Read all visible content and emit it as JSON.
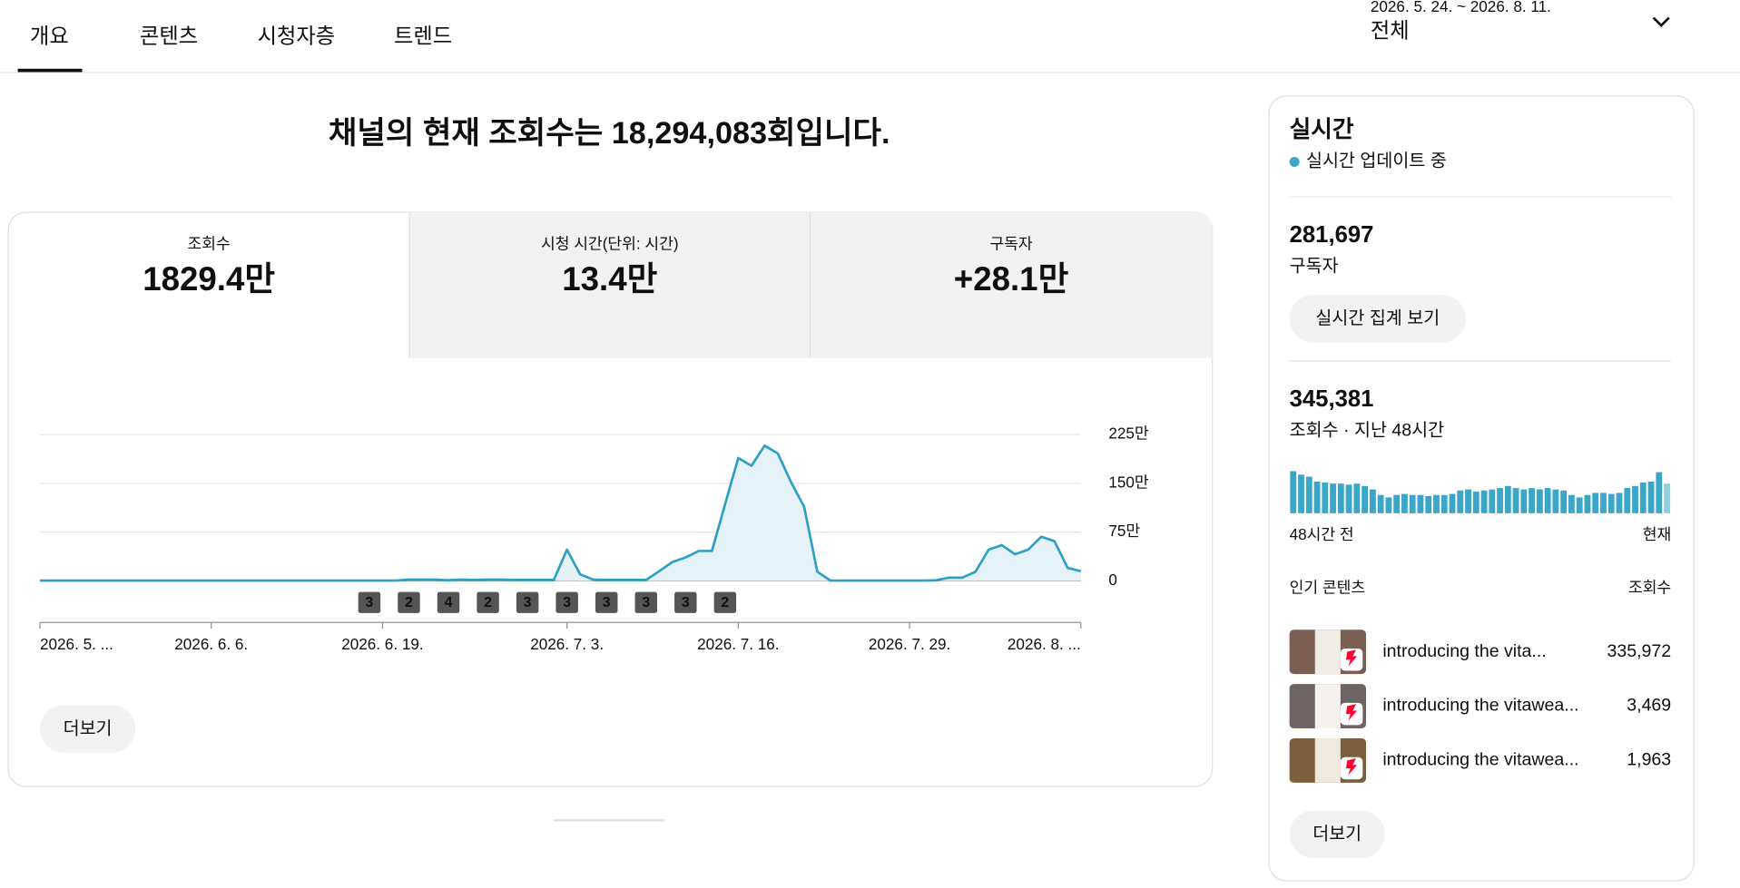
{
  "tabs": [
    "개요",
    "콘텐츠",
    "시청자층",
    "트렌드"
  ],
  "date_range": {
    "dates": "2026. 5. 24. ~ 2026. 8. 11.",
    "period": "전체"
  },
  "headline": "채널의 현재 조회수는 18,294,083회입니다.",
  "metrics": [
    {
      "label": "조회수",
      "value": "1829.4만"
    },
    {
      "label": "시청 시간(단위: 시간)",
      "value": "13.4만"
    },
    {
      "label": "구독자",
      "value": "+28.1만"
    }
  ],
  "more_button": "더보기",
  "chart_data": [
    {
      "type": "line",
      "color": "#2f9fc4",
      "area_color": "#e5f3f9",
      "grid": true,
      "categories": [
        "2026. 5. ...",
        null,
        null,
        null,
        null,
        null,
        null,
        null,
        null,
        null,
        null,
        null,
        null,
        "2026. 6. 6.",
        null,
        null,
        null,
        null,
        null,
        null,
        null,
        null,
        null,
        null,
        null,
        null,
        "2026. 6. 19.",
        null,
        null,
        null,
        null,
        null,
        null,
        null,
        null,
        null,
        null,
        null,
        null,
        null,
        "2026. 7. 3.",
        null,
        null,
        null,
        null,
        null,
        null,
        null,
        null,
        null,
        null,
        null,
        null,
        "2026. 7. 16.",
        null,
        null,
        null,
        null,
        null,
        null,
        null,
        null,
        null,
        null,
        null,
        null,
        "2026. 7. 29.",
        null,
        null,
        null,
        null,
        null,
        null,
        null,
        null,
        null,
        null,
        null,
        null,
        "2026. 8. ..."
      ],
      "values": [
        0.5,
        0.5,
        0.5,
        0.5,
        0.5,
        0.5,
        0.5,
        0.5,
        0.5,
        0.5,
        0.5,
        0.5,
        0.5,
        0.5,
        0.5,
        0.5,
        0.5,
        0.5,
        0.5,
        0.5,
        0.5,
        0.5,
        0.5,
        0.5,
        0.5,
        0.5,
        0.5,
        0.5,
        2,
        2,
        2,
        1,
        2,
        1.5,
        2,
        2,
        1.5,
        1.5,
        1.5,
        1.5,
        48,
        10,
        2,
        1.5,
        1.5,
        1.5,
        1.5,
        15,
        29,
        36,
        46,
        46,
        118,
        189,
        177,
        208,
        196,
        152,
        114,
        14,
        0.5,
        0.5,
        0.5,
        0.5,
        0.5,
        0.5,
        0.5,
        0.5,
        1,
        5,
        5,
        14,
        48,
        55,
        41,
        48,
        68,
        61,
        20,
        15
      ],
      "ylim": [
        0,
        225
      ],
      "yticks": [
        0,
        {
          "value": 75,
          "label": "75만"
        },
        {
          "value": 150,
          "label": "150만"
        },
        {
          "value": 225,
          "label": "225만"
        }
      ],
      "upload_markers": {
        "at": [
          25,
          28,
          31,
          34,
          37,
          40,
          43,
          46,
          49,
          52
        ],
        "counts": [
          3,
          2,
          4,
          2,
          3,
          3,
          3,
          3,
          3,
          2
        ]
      }
    },
    {
      "type": "bar",
      "color": "#3aa6c8",
      "current_color": "#8fd0e3",
      "categories": [
        "48시간 전",
        null,
        null,
        null,
        null,
        null,
        null,
        null,
        null,
        null,
        null,
        null,
        null,
        null,
        null,
        null,
        null,
        null,
        null,
        null,
        null,
        null,
        null,
        null,
        null,
        null,
        null,
        null,
        null,
        null,
        null,
        null,
        null,
        null,
        null,
        null,
        null,
        null,
        null,
        null,
        null,
        null,
        null,
        null,
        null,
        null,
        null,
        "현재"
      ],
      "values": [
        12200,
        11200,
        10600,
        9200,
        8900,
        8600,
        8600,
        8300,
        8600,
        7900,
        6900,
        5300,
        4600,
        5300,
        5600,
        5300,
        5300,
        5000,
        5300,
        5300,
        5600,
        6600,
        6900,
        6300,
        6600,
        6900,
        7300,
        7900,
        7300,
        6900,
        7300,
        6900,
        7300,
        6900,
        6600,
        5300,
        4600,
        5300,
        5900,
        5900,
        5600,
        5900,
        7300,
        7900,
        8900,
        9200,
        11900,
        8600
      ]
    }
  ],
  "realtime": {
    "title": "실시간",
    "status": "실시간 업데이트 중",
    "subscribers": {
      "value": "281,697",
      "label": "구독자"
    },
    "live_count_button": "실시간 집계 보기",
    "views": {
      "value": "345,381",
      "label": "조회수 · 지난 48시간"
    },
    "top_content": {
      "header": "인기 콘텐츠",
      "metric": "조회수",
      "rows": [
        {
          "title": "introducing the vita...",
          "views": "335,972"
        },
        {
          "title": "introducing the vitawea...",
          "views": "3,469"
        },
        {
          "title": "introducing the vitawea...",
          "views": "1,963"
        }
      ]
    },
    "more_button": "더보기"
  }
}
